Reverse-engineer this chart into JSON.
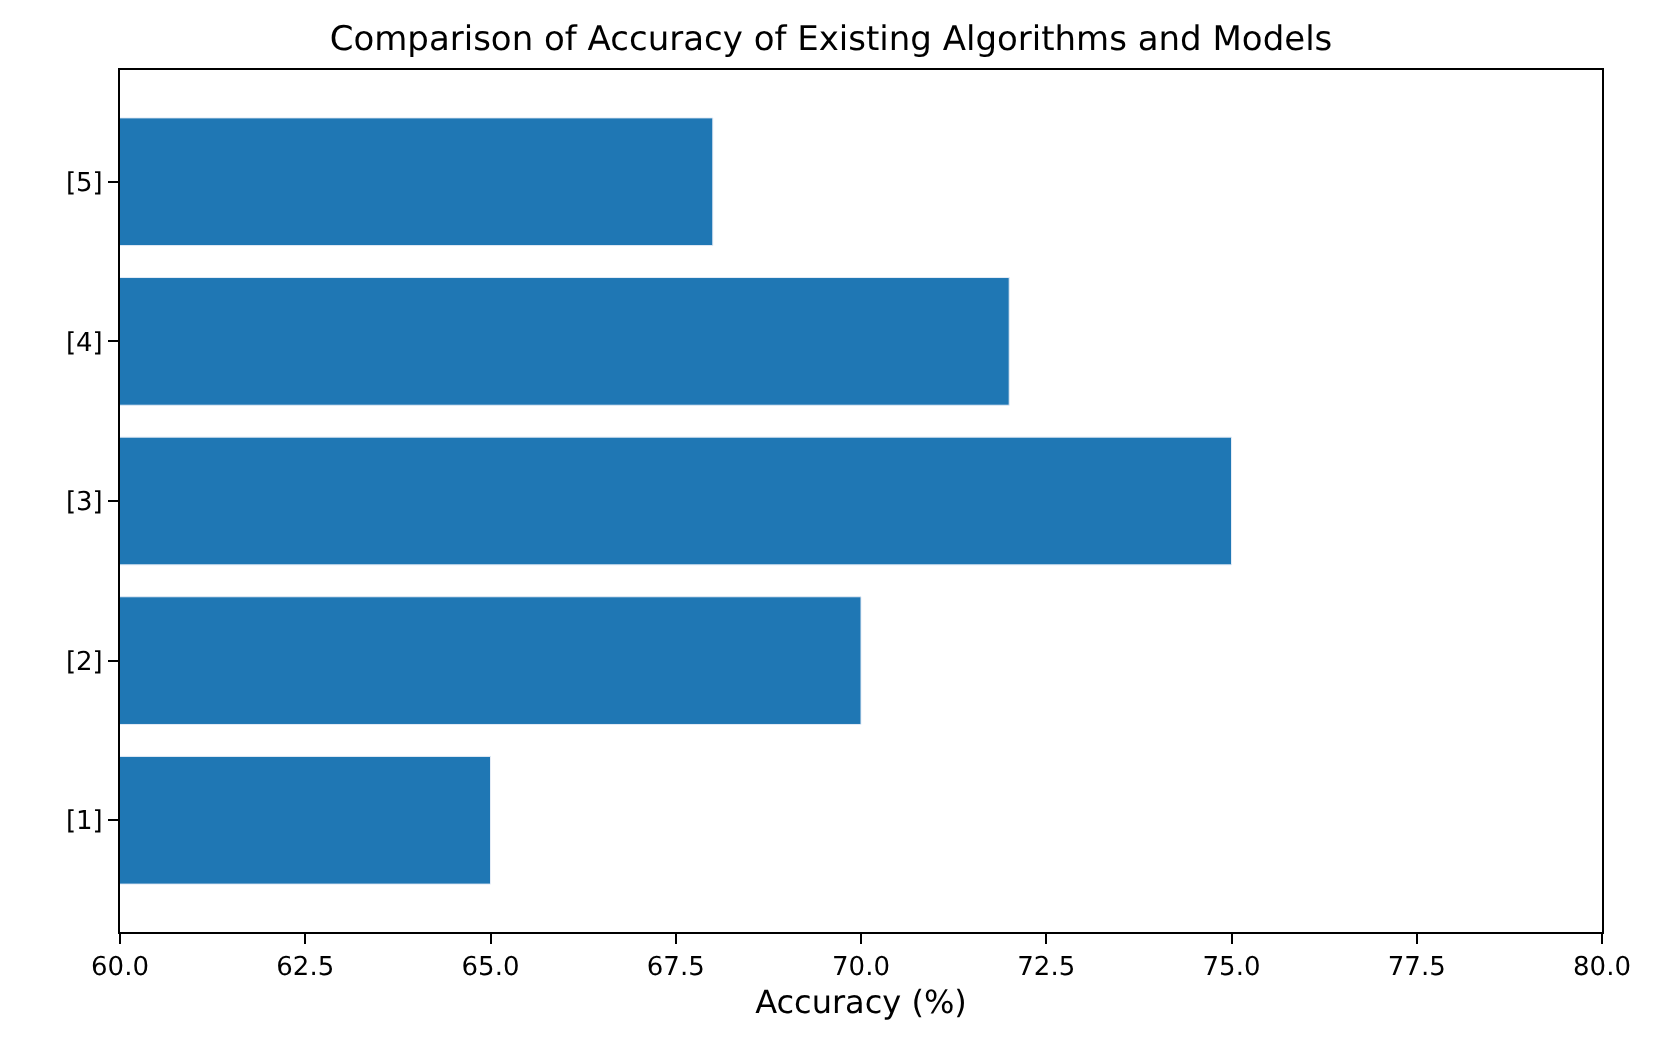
{
  "chart_data": {
    "type": "bar",
    "orientation": "horizontal",
    "title": "Comparison of Accuracy of Existing Algorithms and Models",
    "xlabel": "Accuracy (%)",
    "categories": [
      "[5]",
      "[4]",
      "[3]",
      "[2]",
      "[1]"
    ],
    "values": [
      68,
      72,
      75,
      70,
      65
    ],
    "color": "#1f77b4",
    "xlim": [
      60,
      80
    ],
    "xticks": [
      {
        "value": 60,
        "label": "60.0"
      },
      {
        "value": 62.5,
        "label": "62.5"
      },
      {
        "value": 65,
        "label": "65.0"
      },
      {
        "value": 67.5,
        "label": "67.5"
      },
      {
        "value": 70,
        "label": "70.0"
      },
      {
        "value": 72.5,
        "label": "72.5"
      },
      {
        "value": 75,
        "label": "75.0"
      },
      {
        "value": 77.5,
        "label": "77.5"
      },
      {
        "value": 80,
        "label": "80.0"
      }
    ]
  }
}
